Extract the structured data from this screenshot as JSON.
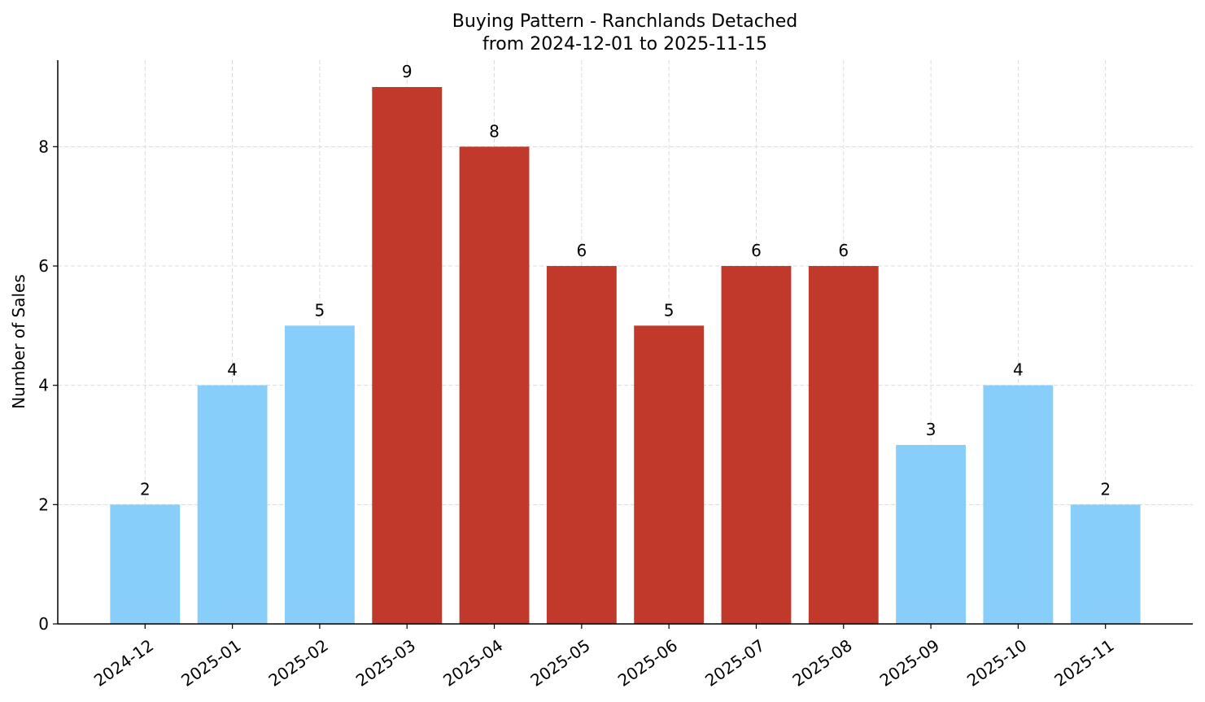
{
  "chart_data": {
    "type": "bar",
    "title": "Buying Pattern - Ranchlands Detached",
    "subtitle": "from 2024-12-01 to 2025-11-15",
    "y_label": "Number of Sales",
    "categories": [
      "2024-12",
      "2025-01",
      "2025-02",
      "2025-03",
      "2025-04",
      "2025-05",
      "2025-06",
      "2025-07",
      "2025-08",
      "2025-09",
      "2025-10",
      "2025-11"
    ],
    "values": [
      2,
      4,
      5,
      9,
      8,
      6,
      5,
      6,
      6,
      3,
      4,
      2
    ],
    "colors": [
      "#87cefa",
      "#87cefa",
      "#87cefa",
      "#c0392b",
      "#c0392b",
      "#c0392b",
      "#c0392b",
      "#c0392b",
      "#c0392b",
      "#87cefa",
      "#87cefa",
      "#87cefa"
    ],
    "ylim": [
      0,
      9.45
    ],
    "yticks": [
      0,
      2,
      4,
      6,
      8
    ],
    "grid": true
  }
}
